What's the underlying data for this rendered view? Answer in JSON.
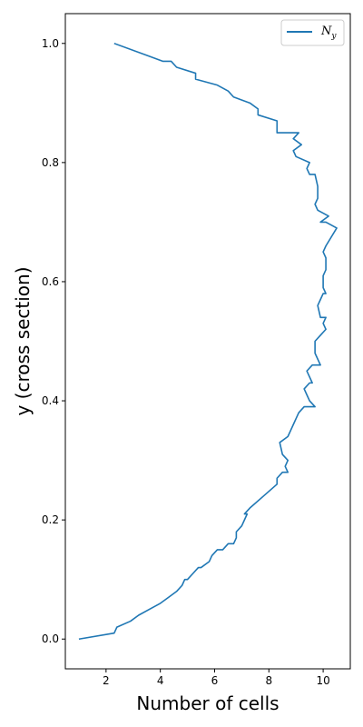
{
  "chart_data": {
    "type": "line",
    "xlabel": "Number of cells",
    "ylabel": "y (cross section)",
    "xlim": [
      0.5,
      11.0
    ],
    "ylim": [
      -0.05,
      1.05
    ],
    "x_ticks": [
      2,
      4,
      6,
      8,
      10
    ],
    "x_tick_labels": [
      "2",
      "4",
      "6",
      "8",
      "10"
    ],
    "y_ticks": [
      0.0,
      0.2,
      0.4,
      0.6,
      0.8,
      1.0
    ],
    "y_tick_labels": [
      "0.0",
      "0.2",
      "0.4",
      "0.6",
      "0.8",
      "1.0"
    ],
    "grid": false,
    "legend_position": "top-right",
    "series": [
      {
        "name": "N_y",
        "legend_base": "N",
        "legend_sub": "y",
        "color": "#1f77b4",
        "x": [
          1.0,
          2.3,
          2.4,
          2.9,
          3.2,
          3.6,
          4.0,
          4.3,
          4.6,
          4.8,
          4.9,
          5.0,
          5.2,
          5.4,
          5.5,
          5.8,
          5.9,
          6.1,
          6.3,
          6.5,
          6.7,
          6.8,
          6.8,
          7.0,
          7.1,
          7.2,
          7.1,
          7.3,
          7.8,
          8.3,
          8.3,
          8.5,
          8.7,
          8.6,
          8.7,
          8.5,
          8.4,
          8.7,
          8.8,
          8.9,
          9.0,
          9.1,
          9.3,
          9.7,
          9.5,
          9.4,
          9.3,
          9.5,
          9.6,
          9.5,
          9.4,
          9.6,
          9.9,
          9.7,
          9.7,
          9.9,
          10.1,
          10.0,
          10.1,
          9.9,
          9.8,
          9.9,
          10.0,
          10.1,
          10.0,
          10.0,
          10.1,
          10.1,
          10.0,
          10.1,
          10.5,
          10.1,
          9.9,
          10.2,
          9.8,
          9.7,
          9.8,
          9.8,
          9.7,
          9.5,
          9.4,
          9.5,
          9.0,
          8.9,
          9.2,
          8.9,
          9.1,
          8.3,
          8.3,
          7.6,
          7.6,
          7.3,
          6.7,
          6.5,
          6.1,
          5.3,
          5.3,
          4.6,
          4.4,
          4.1,
          3.5,
          2.3
        ],
        "y": [
          0.0,
          0.01,
          0.02,
          0.03,
          0.04,
          0.05,
          0.06,
          0.07,
          0.08,
          0.09,
          0.1,
          0.1,
          0.11,
          0.12,
          0.12,
          0.13,
          0.14,
          0.15,
          0.15,
          0.16,
          0.16,
          0.17,
          0.18,
          0.19,
          0.2,
          0.21,
          0.21,
          0.22,
          0.24,
          0.26,
          0.27,
          0.28,
          0.28,
          0.29,
          0.3,
          0.31,
          0.33,
          0.34,
          0.35,
          0.36,
          0.37,
          0.38,
          0.39,
          0.39,
          0.4,
          0.41,
          0.42,
          0.43,
          0.43,
          0.44,
          0.45,
          0.46,
          0.46,
          0.48,
          0.5,
          0.51,
          0.52,
          0.53,
          0.54,
          0.54,
          0.56,
          0.57,
          0.58,
          0.58,
          0.59,
          0.61,
          0.62,
          0.64,
          0.65,
          0.66,
          0.69,
          0.7,
          0.7,
          0.71,
          0.72,
          0.73,
          0.74,
          0.76,
          0.78,
          0.78,
          0.79,
          0.8,
          0.81,
          0.82,
          0.83,
          0.84,
          0.85,
          0.85,
          0.87,
          0.88,
          0.89,
          0.9,
          0.91,
          0.92,
          0.93,
          0.94,
          0.95,
          0.96,
          0.97,
          0.97,
          0.98,
          1.0
        ]
      }
    ]
  }
}
